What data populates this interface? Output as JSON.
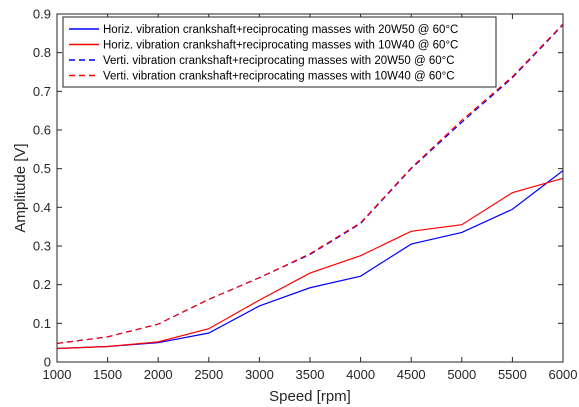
{
  "chart_data": {
    "type": "line",
    "xlabel": "Speed [rpm]",
    "ylabel": "Amplitude [V]",
    "xlim": [
      1000,
      6000
    ],
    "ylim": [
      0,
      0.9
    ],
    "x_ticks": [
      "1000",
      "1500",
      "2000",
      "2500",
      "3000",
      "3500",
      "4000",
      "4500",
      "5000",
      "5500",
      "6000"
    ],
    "y_ticks": [
      "0",
      "0.1",
      "0.2",
      "0.3",
      "0.4",
      "0.5",
      "0.6",
      "0.7",
      "0.8",
      "0.9"
    ],
    "x_tick_values": [
      1000,
      1500,
      2000,
      2500,
      3000,
      3500,
      4000,
      4500,
      5000,
      5500,
      6000
    ],
    "y_tick_values": [
      0,
      0.1,
      0.2,
      0.3,
      0.4,
      0.5,
      0.6,
      0.7,
      0.8,
      0.9
    ],
    "grid": false,
    "legend_position": "top-left",
    "x": [
      1000,
      1500,
      2000,
      2500,
      3000,
      3500,
      4000,
      4500,
      5000,
      5500,
      6000
    ],
    "series": [
      {
        "name": "Horiz. vibration crankshaft+reciprocating masses with 20W50 @ 60°C",
        "color": "#0000ff",
        "dash": "solid",
        "values": [
          0.035,
          0.04,
          0.05,
          0.075,
          0.145,
          0.192,
          0.222,
          0.305,
          0.335,
          0.395,
          0.495
        ]
      },
      {
        "name": "Horiz. vibration crankshaft+reciprocating masses with 10W40 @ 60°C",
        "color": "#ff0000",
        "dash": "solid",
        "values": [
          0.035,
          0.04,
          0.052,
          0.086,
          0.16,
          0.23,
          0.275,
          0.338,
          0.355,
          0.438,
          0.475
        ]
      },
      {
        "name": "Verti. vibration crankshaft+reciprocating masses with 20W50 @ 60°C",
        "color": "#0000ff",
        "dash": "dashed",
        "values": [
          0.048,
          0.065,
          0.098,
          0.162,
          0.218,
          0.278,
          0.358,
          0.5,
          0.62,
          0.735,
          0.872
        ]
      },
      {
        "name": "Verti. vibration crankshaft+reciprocating masses with 10W40 @ 60°C",
        "color": "#ff0000",
        "dash": "dashed",
        "values": [
          0.048,
          0.065,
          0.098,
          0.162,
          0.218,
          0.28,
          0.36,
          0.502,
          0.625,
          0.738,
          0.874
        ]
      }
    ]
  }
}
